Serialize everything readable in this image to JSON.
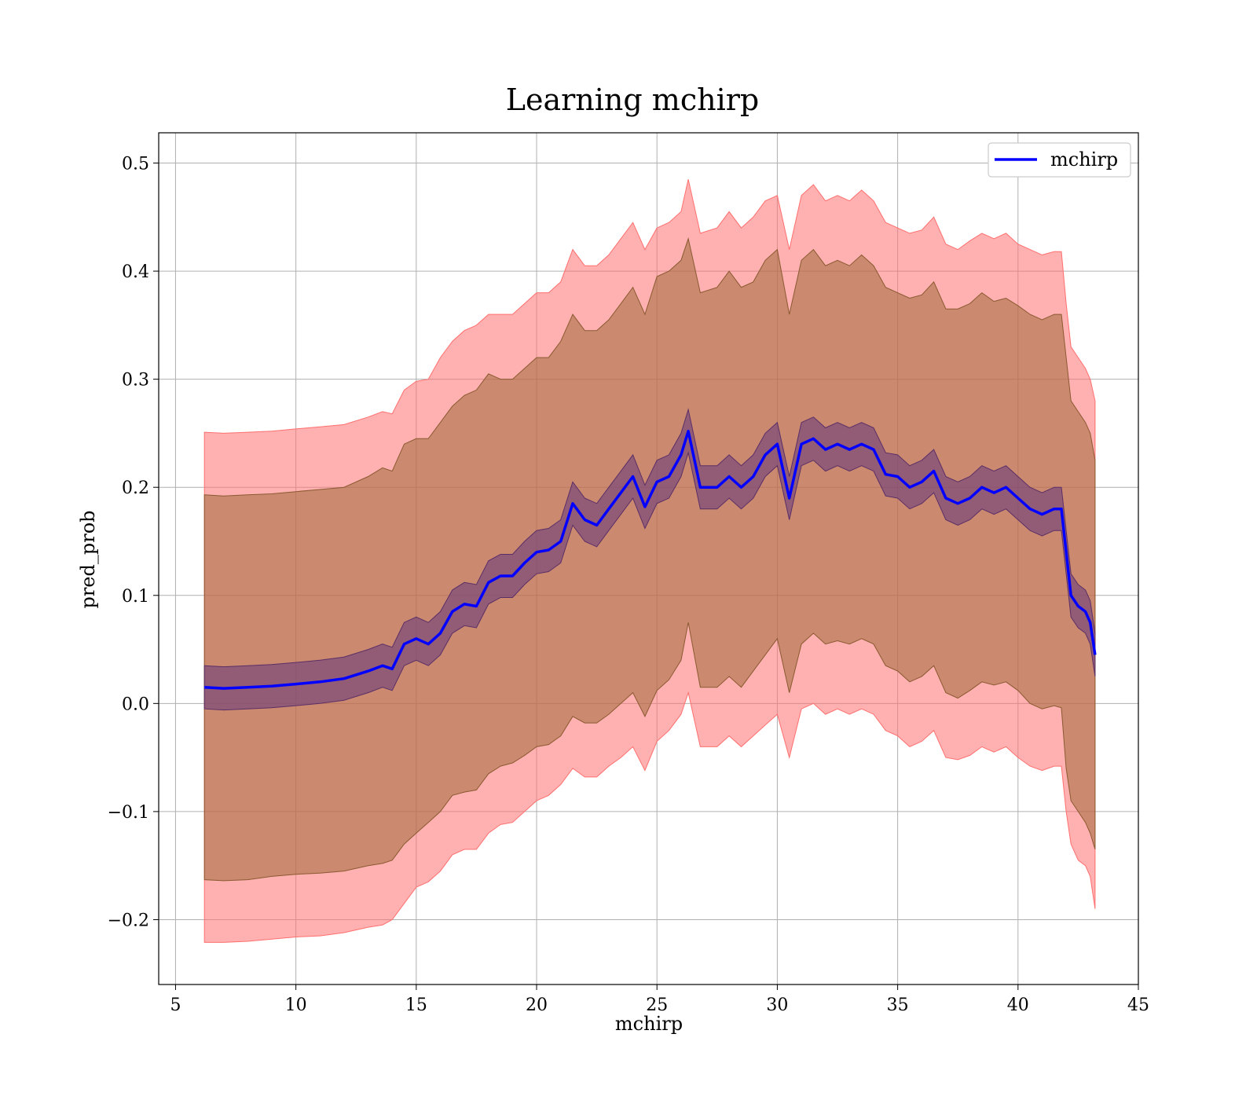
{
  "chart_data": {
    "type": "line",
    "title": "Learning mchirp",
    "xlabel": "mchirp",
    "ylabel": "pred_prob",
    "xlim": [
      4.3,
      45
    ],
    "ylim": [
      -0.26,
      0.528
    ],
    "xticks": [
      5,
      10,
      15,
      20,
      25,
      30,
      35,
      40,
      45
    ],
    "xtick_labels": [
      "5",
      "10",
      "15",
      "20",
      "25",
      "30",
      "35",
      "40",
      "45"
    ],
    "yticks": [
      -0.2,
      -0.1,
      0.0,
      0.1,
      0.2,
      0.3,
      0.4,
      0.5
    ],
    "ytick_labels": [
      "−0.2",
      "−0.1",
      "0.0",
      "0.1",
      "0.2",
      "0.3",
      "0.4",
      "0.5"
    ],
    "grid": true,
    "legend": {
      "position": "top-right",
      "entries": [
        "mchirp"
      ]
    },
    "colors": {
      "line": "#0000ff",
      "outer_band": "#ff6f6f",
      "middle_band": "#a06a3c",
      "inner_band": "#6e3e7a"
    },
    "series": [
      {
        "name": "mchirp",
        "x": [
          6.2,
          7,
          8,
          9,
          10,
          11,
          12,
          13,
          13.6,
          14,
          14.5,
          15,
          15.5,
          16,
          16.5,
          17,
          17.5,
          18,
          18.5,
          19,
          19.5,
          20,
          20.5,
          21,
          21.5,
          22,
          22.5,
          23,
          23.5,
          24,
          24.5,
          25,
          25.5,
          26,
          26.3,
          26.8,
          27.5,
          28,
          28.5,
          29,
          29.5,
          30,
          30.5,
          31,
          31.5,
          32,
          32.5,
          33,
          33.5,
          34,
          34.5,
          35,
          35.5,
          36,
          36.5,
          37,
          37.5,
          38,
          38.5,
          39,
          39.5,
          40,
          40.5,
          41,
          41.5,
          41.8,
          42,
          42.2,
          42.5,
          42.8,
          43,
          43.2
        ],
        "y": [
          0.015,
          0.014,
          0.015,
          0.016,
          0.018,
          0.02,
          0.023,
          0.03,
          0.035,
          0.032,
          0.055,
          0.06,
          0.055,
          0.065,
          0.085,
          0.092,
          0.09,
          0.112,
          0.118,
          0.118,
          0.13,
          0.14,
          0.142,
          0.15,
          0.185,
          0.17,
          0.165,
          0.18,
          0.195,
          0.21,
          0.182,
          0.205,
          0.21,
          0.23,
          0.252,
          0.2,
          0.2,
          0.21,
          0.2,
          0.21,
          0.23,
          0.24,
          0.19,
          0.24,
          0.245,
          0.235,
          0.24,
          0.235,
          0.24,
          0.235,
          0.212,
          0.21,
          0.2,
          0.205,
          0.215,
          0.19,
          0.185,
          0.19,
          0.2,
          0.195,
          0.2,
          0.19,
          0.18,
          0.175,
          0.18,
          0.18,
          0.14,
          0.1,
          0.09,
          0.085,
          0.075,
          0.045
        ],
        "inner_band_halfwidth": 0.02,
        "middle_band_lower": [
          -0.163,
          -0.164,
          -0.163,
          -0.16,
          -0.158,
          -0.157,
          -0.155,
          -0.15,
          -0.148,
          -0.145,
          -0.13,
          -0.12,
          -0.11,
          -0.1,
          -0.085,
          -0.082,
          -0.08,
          -0.065,
          -0.058,
          -0.055,
          -0.048,
          -0.04,
          -0.038,
          -0.03,
          -0.012,
          -0.018,
          -0.018,
          -0.01,
          0.0,
          0.01,
          -0.012,
          0.012,
          0.022,
          0.04,
          0.075,
          0.015,
          0.015,
          0.025,
          0.015,
          0.03,
          0.045,
          0.06,
          0.01,
          0.055,
          0.065,
          0.055,
          0.058,
          0.055,
          0.06,
          0.055,
          0.035,
          0.03,
          0.02,
          0.025,
          0.035,
          0.01,
          0.005,
          0.012,
          0.02,
          0.017,
          0.02,
          0.012,
          0.0,
          -0.005,
          -0.002,
          -0.004,
          -0.06,
          -0.09,
          -0.1,
          -0.11,
          -0.12,
          -0.135
        ],
        "middle_band_upper": [
          0.193,
          0.192,
          0.193,
          0.194,
          0.196,
          0.198,
          0.2,
          0.21,
          0.218,
          0.215,
          0.24,
          0.245,
          0.245,
          0.26,
          0.275,
          0.285,
          0.29,
          0.305,
          0.3,
          0.3,
          0.31,
          0.32,
          0.32,
          0.335,
          0.36,
          0.345,
          0.345,
          0.355,
          0.37,
          0.385,
          0.36,
          0.395,
          0.4,
          0.41,
          0.43,
          0.38,
          0.385,
          0.4,
          0.385,
          0.39,
          0.41,
          0.42,
          0.36,
          0.41,
          0.42,
          0.405,
          0.41,
          0.405,
          0.415,
          0.405,
          0.385,
          0.38,
          0.375,
          0.378,
          0.39,
          0.365,
          0.365,
          0.37,
          0.38,
          0.372,
          0.375,
          0.368,
          0.36,
          0.355,
          0.36,
          0.36,
          0.32,
          0.28,
          0.27,
          0.26,
          0.25,
          0.225
        ],
        "outer_band_lower": [
          -0.221,
          -0.221,
          -0.22,
          -0.218,
          -0.216,
          -0.215,
          -0.212,
          -0.207,
          -0.205,
          -0.2,
          -0.185,
          -0.17,
          -0.165,
          -0.155,
          -0.14,
          -0.135,
          -0.135,
          -0.12,
          -0.112,
          -0.11,
          -0.1,
          -0.09,
          -0.085,
          -0.075,
          -0.06,
          -0.068,
          -0.068,
          -0.058,
          -0.05,
          -0.04,
          -0.062,
          -0.035,
          -0.025,
          -0.01,
          0.01,
          -0.04,
          -0.04,
          -0.03,
          -0.04,
          -0.03,
          -0.02,
          -0.01,
          -0.05,
          -0.005,
          0.0,
          -0.01,
          -0.005,
          -0.01,
          -0.005,
          -0.01,
          -0.025,
          -0.03,
          -0.04,
          -0.035,
          -0.025,
          -0.05,
          -0.052,
          -0.048,
          -0.04,
          -0.045,
          -0.04,
          -0.05,
          -0.058,
          -0.062,
          -0.058,
          -0.058,
          -0.1,
          -0.13,
          -0.145,
          -0.15,
          -0.16,
          -0.19
        ],
        "outer_band_upper": [
          0.251,
          0.25,
          0.251,
          0.252,
          0.254,
          0.256,
          0.258,
          0.265,
          0.27,
          0.268,
          0.29,
          0.298,
          0.3,
          0.32,
          0.335,
          0.345,
          0.35,
          0.36,
          0.36,
          0.36,
          0.37,
          0.38,
          0.38,
          0.39,
          0.42,
          0.405,
          0.405,
          0.415,
          0.43,
          0.445,
          0.42,
          0.44,
          0.445,
          0.455,
          0.485,
          0.435,
          0.44,
          0.455,
          0.44,
          0.45,
          0.465,
          0.47,
          0.42,
          0.47,
          0.48,
          0.465,
          0.47,
          0.465,
          0.475,
          0.465,
          0.445,
          0.44,
          0.435,
          0.438,
          0.45,
          0.425,
          0.42,
          0.428,
          0.435,
          0.43,
          0.435,
          0.425,
          0.42,
          0.415,
          0.418,
          0.418,
          0.37,
          0.33,
          0.32,
          0.31,
          0.3,
          0.28
        ]
      }
    ]
  }
}
